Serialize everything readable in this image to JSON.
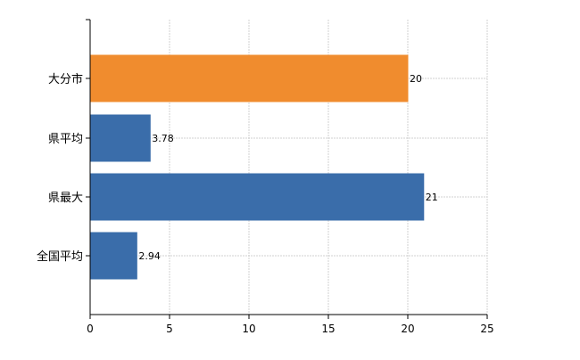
{
  "chart_data": {
    "type": "bar",
    "orientation": "horizontal",
    "categories": [
      "大分市",
      "県平均",
      "県最大",
      "全国平均"
    ],
    "values": [
      20,
      3.78,
      21,
      2.94
    ],
    "value_labels": [
      "20",
      "3.78",
      "21",
      "2.94"
    ],
    "bar_colors": [
      "#F08C2E",
      "#3A6DAA",
      "#3A6DAA",
      "#3A6DAA"
    ],
    "title": "",
    "xlabel": "",
    "ylabel": "",
    "xlim": [
      0,
      25
    ],
    "x_ticks": [
      0,
      5,
      10,
      15,
      20,
      25
    ],
    "x_tick_labels": [
      "0",
      "5",
      "10",
      "15",
      "20",
      "25"
    ],
    "grid": true
  },
  "colors": {
    "highlight": "#F08C2E",
    "default": "#3A6DAA",
    "grid": "#D0D0D0"
  }
}
